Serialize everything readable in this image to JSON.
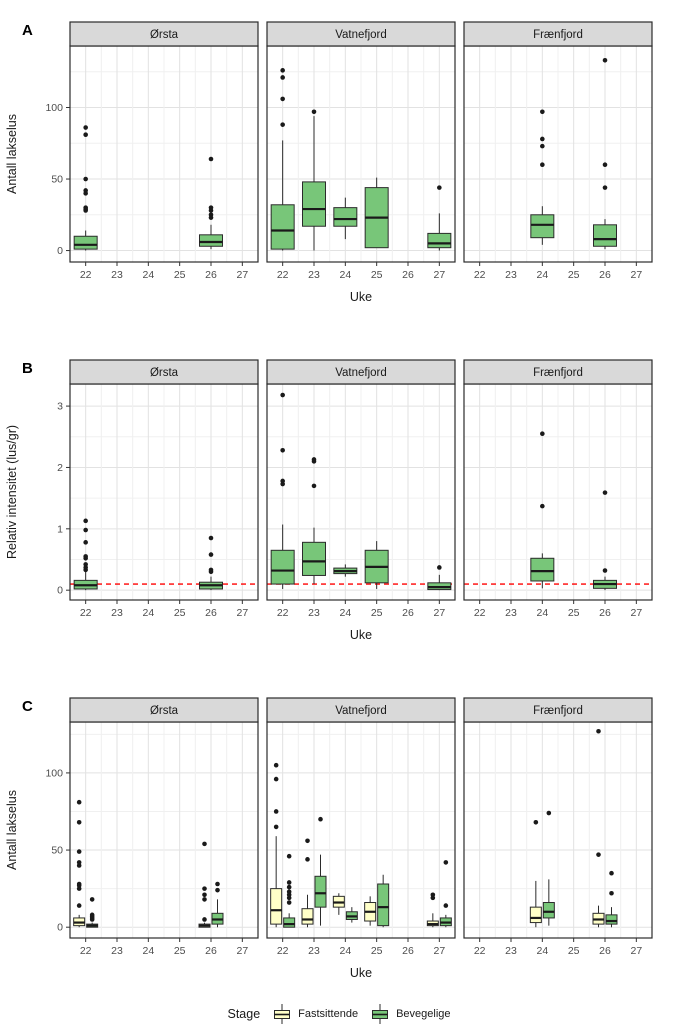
{
  "chart_data": {
    "type": "boxplot",
    "xlabel": "Uke",
    "x_ticks": [
      22,
      23,
      24,
      25,
      26,
      27
    ],
    "facet_titles": [
      "Ørsta",
      "Vatnefjord",
      "Frænfjord"
    ],
    "colors": {
      "single_fill": "#78C679",
      "fastsittende_fill": "#FFFFC8",
      "bevegelige_fill": "#78C679",
      "refline": "#FF0000",
      "strip_bg": "#D9D9D9",
      "panel_border": "#2B2B2B",
      "grid_major": "#E2E2E2",
      "grid_minor": "#F0F0F0",
      "tick_text": "#4D4D4D",
      "outlier": "#1A1A1A"
    },
    "panels": [
      {
        "panel_label": "A",
        "ylabel": "Antall lakselus",
        "yticks": [
          0,
          50,
          100
        ],
        "ylim": [
          -8,
          143
        ],
        "refline": null,
        "grouped": false,
        "facets": [
          {
            "title": "Ørsta",
            "boxes": [
              {
                "week": 22,
                "series": "single",
                "lo": 0,
                "q1": 1,
                "med": 4,
                "q3": 10,
                "hi": 14,
                "outliers": [
                  28,
                  29,
                  30,
                  40,
                  42,
                  50,
                  81,
                  86
                ]
              },
              {
                "week": 26,
                "series": "single",
                "lo": 1,
                "q1": 3,
                "med": 6,
                "q3": 11,
                "hi": 18,
                "outliers": [
                  23,
                  25,
                  28,
                  30,
                  64
                ]
              }
            ]
          },
          {
            "title": "Vatnefjord",
            "boxes": [
              {
                "week": 22,
                "series": "single",
                "lo": 0,
                "q1": 1,
                "med": 14,
                "q3": 32,
                "hi": 77,
                "outliers": [
                  88,
                  106,
                  121,
                  126
                ]
              },
              {
                "week": 23,
                "series": "single",
                "lo": 0,
                "q1": 17,
                "med": 29,
                "q3": 48,
                "hi": 94,
                "outliers": [
                  97
                ]
              },
              {
                "week": 24,
                "series": "single",
                "lo": 8,
                "q1": 17,
                "med": 22,
                "q3": 30,
                "hi": 37,
                "outliers": []
              },
              {
                "week": 25,
                "series": "single",
                "lo": 2,
                "q1": 2,
                "med": 23,
                "q3": 44,
                "hi": 51,
                "outliers": []
              },
              {
                "week": 27,
                "series": "single",
                "lo": 0,
                "q1": 2,
                "med": 5,
                "q3": 12,
                "hi": 26,
                "outliers": [
                  44
                ]
              }
            ]
          },
          {
            "title": "Frænfjord",
            "boxes": [
              {
                "week": 24,
                "series": "single",
                "lo": 4,
                "q1": 9,
                "med": 18,
                "q3": 25,
                "hi": 31,
                "outliers": [
                  60,
                  73,
                  78,
                  97
                ]
              },
              {
                "week": 26,
                "series": "single",
                "lo": 1,
                "q1": 3,
                "med": 8,
                "q3": 18,
                "hi": 22,
                "outliers": [
                  44,
                  60,
                  133
                ]
              }
            ]
          }
        ]
      },
      {
        "panel_label": "B",
        "ylabel": "Relativ intensitet (lus/gr)",
        "yticks": [
          0,
          1,
          2,
          3
        ],
        "ylim": [
          -0.16,
          3.36
        ],
        "refline": 0.1,
        "grouped": false,
        "facets": [
          {
            "title": "Ørsta",
            "boxes": [
              {
                "week": 22,
                "series": "single",
                "lo": 0,
                "q1": 0.02,
                "med": 0.08,
                "q3": 0.16,
                "hi": 0.3,
                "outliers": [
                  0.33,
                  0.37,
                  0.42,
                  0.52,
                  0.55,
                  0.78,
                  0.98,
                  1.13
                ]
              },
              {
                "week": 26,
                "series": "single",
                "lo": 0,
                "q1": 0.02,
                "med": 0.08,
                "q3": 0.13,
                "hi": 0.22,
                "outliers": [
                  0.3,
                  0.33,
                  0.58,
                  0.85
                ]
              }
            ]
          },
          {
            "title": "Vatnefjord",
            "boxes": [
              {
                "week": 22,
                "series": "single",
                "lo": 0.02,
                "q1": 0.1,
                "med": 0.32,
                "q3": 0.65,
                "hi": 1.07,
                "outliers": [
                  1.73,
                  1.78,
                  2.28,
                  3.18
                ]
              },
              {
                "week": 23,
                "series": "single",
                "lo": 0.1,
                "q1": 0.24,
                "med": 0.47,
                "q3": 0.78,
                "hi": 1.02,
                "outliers": [
                  1.7,
                  2.1,
                  2.13
                ]
              },
              {
                "week": 24,
                "series": "single",
                "lo": 0.22,
                "q1": 0.27,
                "med": 0.31,
                "q3": 0.36,
                "hi": 0.42,
                "outliers": []
              },
              {
                "week": 25,
                "series": "single",
                "lo": 0.02,
                "q1": 0.12,
                "med": 0.38,
                "q3": 0.65,
                "hi": 0.8,
                "outliers": []
              },
              {
                "week": 27,
                "series": "single",
                "lo": 0,
                "q1": 0.01,
                "med": 0.05,
                "q3": 0.12,
                "hi": 0.25,
                "outliers": [
                  0.37
                ]
              }
            ]
          },
          {
            "title": "Frænfjord",
            "boxes": [
              {
                "week": 24,
                "series": "single",
                "lo": 0.03,
                "q1": 0.15,
                "med": 0.31,
                "q3": 0.52,
                "hi": 0.6,
                "outliers": [
                  1.37,
                  2.55
                ]
              },
              {
                "week": 26,
                "series": "single",
                "lo": 0,
                "q1": 0.03,
                "med": 0.1,
                "q3": 0.16,
                "hi": 0.22,
                "outliers": [
                  0.32,
                  1.59
                ]
              }
            ]
          }
        ]
      },
      {
        "panel_label": "C",
        "ylabel": "Antall lakselus",
        "yticks": [
          0,
          50,
          100
        ],
        "ylim": [
          -7,
          133
        ],
        "refline": null,
        "grouped": true,
        "facets": [
          {
            "title": "Ørsta",
            "boxes": [
              {
                "week": 22,
                "series": "Fastsittende",
                "lo": 0,
                "q1": 1,
                "med": 3,
                "q3": 6,
                "hi": 8,
                "outliers": [
                  14,
                  25,
                  27,
                  28,
                  40,
                  42,
                  49,
                  68,
                  81
                ]
              },
              {
                "week": 22,
                "series": "Bevegelige",
                "lo": 0,
                "q1": 0,
                "med": 1,
                "q3": 2,
                "hi": 3,
                "outliers": [
                  5,
                  6,
                  7,
                  8,
                  18
                ]
              },
              {
                "week": 26,
                "series": "Fastsittende",
                "lo": 0,
                "q1": 0,
                "med": 1,
                "q3": 2,
                "hi": 3,
                "outliers": [
                  5,
                  18,
                  21,
                  25,
                  54
                ]
              },
              {
                "week": 26,
                "series": "Bevegelige",
                "lo": 0,
                "q1": 2,
                "med": 5,
                "q3": 9,
                "hi": 18,
                "outliers": [
                  24,
                  28
                ]
              }
            ]
          },
          {
            "title": "Vatnefjord",
            "boxes": [
              {
                "week": 22,
                "series": "Fastsittende",
                "lo": 0,
                "q1": 2,
                "med": 11,
                "q3": 25,
                "hi": 59,
                "outliers": [
                  65,
                  75,
                  96,
                  105
                ]
              },
              {
                "week": 22,
                "series": "Bevegelige",
                "lo": 0,
                "q1": 0,
                "med": 2,
                "q3": 6,
                "hi": 9,
                "outliers": [
                  16,
                  19,
                  21,
                  23,
                  26,
                  29,
                  46
                ]
              },
              {
                "week": 23,
                "series": "Fastsittende",
                "lo": 0,
                "q1": 2,
                "med": 5,
                "q3": 12,
                "hi": 21,
                "outliers": [
                  44,
                  56
                ]
              },
              {
                "week": 23,
                "series": "Bevegelige",
                "lo": 1,
                "q1": 13,
                "med": 22,
                "q3": 33,
                "hi": 47,
                "outliers": [
                  70
                ]
              },
              {
                "week": 24,
                "series": "Fastsittende",
                "lo": 8,
                "q1": 13,
                "med": 16,
                "q3": 20,
                "hi": 22,
                "outliers": []
              },
              {
                "week": 24,
                "series": "Bevegelige",
                "lo": 3,
                "q1": 5,
                "med": 7,
                "q3": 10,
                "hi": 13,
                "outliers": []
              },
              {
                "week": 25,
                "series": "Fastsittende",
                "lo": 1,
                "q1": 4,
                "med": 10,
                "q3": 16,
                "hi": 20,
                "outliers": []
              },
              {
                "week": 25,
                "series": "Bevegelige",
                "lo": 0,
                "q1": 1,
                "med": 13,
                "q3": 28,
                "hi": 34,
                "outliers": []
              },
              {
                "week": 27,
                "series": "Fastsittende",
                "lo": 0,
                "q1": 1,
                "med": 2,
                "q3": 4,
                "hi": 9,
                "outliers": [
                  19,
                  21
                ]
              },
              {
                "week": 27,
                "series": "Bevegelige",
                "lo": 0,
                "q1": 1,
                "med": 3,
                "q3": 6,
                "hi": 8,
                "outliers": [
                  14,
                  42
                ]
              }
            ]
          },
          {
            "title": "Frænfjord",
            "boxes": [
              {
                "week": 24,
                "series": "Fastsittende",
                "lo": 0,
                "q1": 3,
                "med": 6,
                "q3": 13,
                "hi": 30,
                "outliers": [
                  68
                ]
              },
              {
                "week": 24,
                "series": "Bevegelige",
                "lo": 1,
                "q1": 6,
                "med": 10,
                "q3": 16,
                "hi": 31,
                "outliers": [
                  74
                ]
              },
              {
                "week": 26,
                "series": "Fastsittende",
                "lo": 0,
                "q1": 2,
                "med": 5,
                "q3": 9,
                "hi": 14,
                "outliers": [
                  47,
                  127
                ]
              },
              {
                "week": 26,
                "series": "Bevegelige",
                "lo": 0,
                "q1": 2,
                "med": 4,
                "q3": 8,
                "hi": 13,
                "outliers": [
                  22,
                  35
                ]
              }
            ]
          }
        ]
      }
    ],
    "legend": {
      "title": "Stage",
      "items": [
        {
          "label": "Fastsittende",
          "color": "#FFFFC8"
        },
        {
          "label": "Bevegelige",
          "color": "#78C679"
        }
      ]
    }
  }
}
